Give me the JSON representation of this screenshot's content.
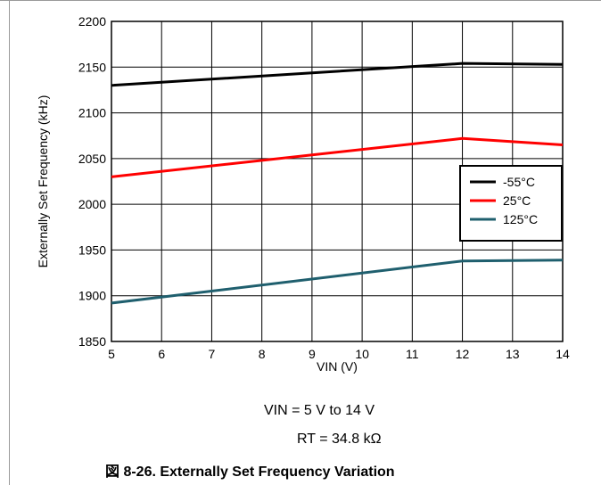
{
  "conditions": {
    "vin": "VIN = 5 V to 14 V",
    "rt": "RT = 34.8 kΩ"
  },
  "caption": "図 8-26. Externally Set Frequency Variation",
  "colors": {
    "neg55": "#000000",
    "t25": "#ff0000",
    "t125": "#1f5f6e"
  },
  "chart_data": {
    "type": "line",
    "title": "",
    "xlabel": "VIN (V)",
    "ylabel": "Externally Set Frequency (kHz)",
    "xlim": [
      5,
      14
    ],
    "ylim": [
      1850,
      2200
    ],
    "xticks": [
      5,
      6,
      7,
      8,
      9,
      10,
      11,
      12,
      13,
      14
    ],
    "yticks": [
      1850,
      1900,
      1950,
      2000,
      2050,
      2100,
      2150,
      2200
    ],
    "grid": true,
    "legend_position": "right",
    "series": [
      {
        "name": "-55°C",
        "color": "#000000",
        "x": [
          5,
          12,
          14
        ],
        "y": [
          2130,
          2154,
          2153
        ]
      },
      {
        "name": "25°C",
        "color": "#ff0000",
        "x": [
          5,
          12,
          14
        ],
        "y": [
          2030,
          2072,
          2065
        ]
      },
      {
        "name": "125°C",
        "color": "#1f5f6e",
        "x": [
          5,
          12,
          14
        ],
        "y": [
          1892,
          1938,
          1939
        ]
      }
    ]
  }
}
